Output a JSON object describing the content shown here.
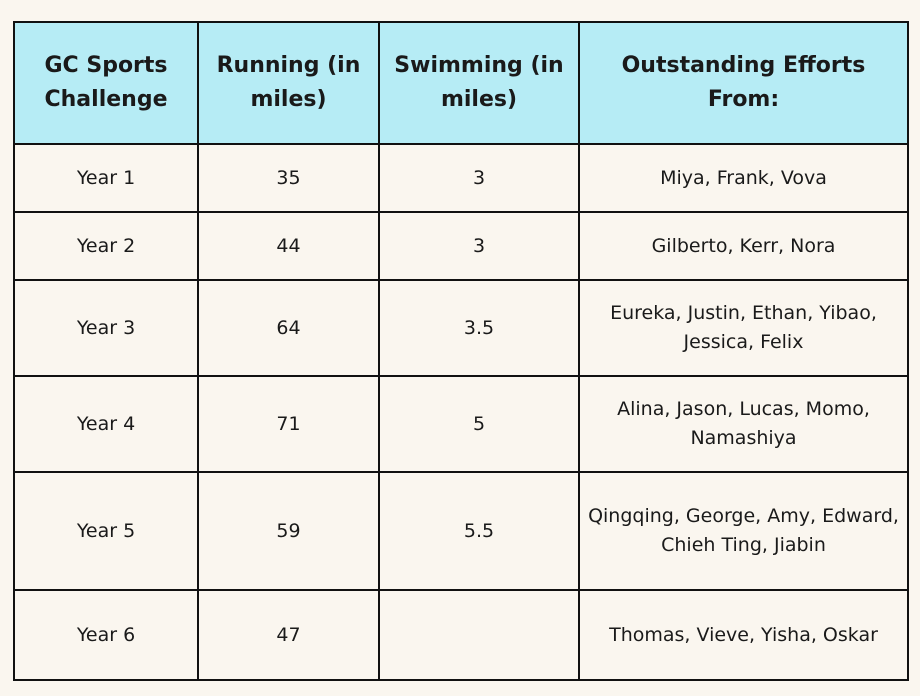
{
  "colors": {
    "header_background": "#b6ecf5",
    "cell_background": "#faf6ef",
    "border": "#111111",
    "text": "#1a1a1a"
  },
  "chart_data": {
    "type": "table",
    "title": "",
    "columns": [
      "GC Sports Challenge",
      "Running (in miles)",
      "Swimming (in miles)",
      "Outstanding Efforts From:"
    ],
    "rows": [
      [
        "Year 1",
        "35",
        "3",
        "Miya, Frank, Vova"
      ],
      [
        "Year 2",
        "44",
        "3",
        "Gilberto, Kerr, Nora"
      ],
      [
        "Year 3",
        "64",
        "3.5",
        "Eureka, Justin, Ethan, Yibao, Jessica, Felix"
      ],
      [
        "Year 4",
        "71",
        "5",
        "Alina, Jason, Lucas, Momo, Namashiya"
      ],
      [
        "Year 5",
        "59",
        "5.5",
        "Qingqing, George, Amy, Edward, Chieh Ting, Jiabin"
      ],
      [
        "Year 6",
        "47",
        "",
        "Thomas, Vieve, Yisha, Oskar"
      ]
    ]
  }
}
